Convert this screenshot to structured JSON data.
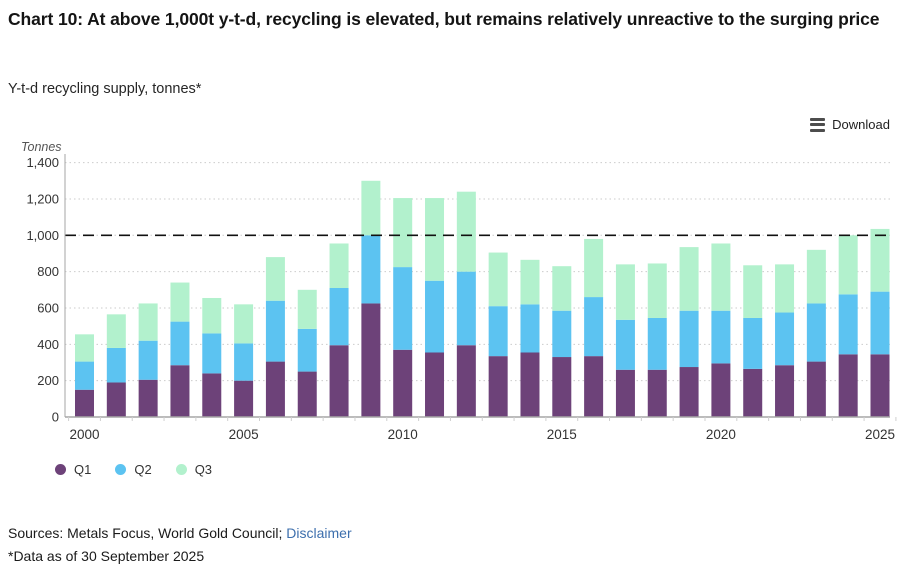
{
  "header": {
    "title": "Chart 10: At above 1,000t y-t-d, recycling is elevated, but remains relatively unreactive to the surging price",
    "subtitle": "Y-t-d recycling supply, tonnes*"
  },
  "toolbar": {
    "download_label": "Download",
    "download_icon": "hamburger-menu-icon"
  },
  "chart_data": {
    "type": "bar",
    "stacked": true,
    "title": "Y-t-d recycling supply, tonnes*",
    "axis_unit_label": "Tonnes",
    "categories": [
      2000,
      2001,
      2002,
      2003,
      2004,
      2005,
      2006,
      2007,
      2008,
      2009,
      2010,
      2011,
      2012,
      2013,
      2014,
      2015,
      2016,
      2017,
      2018,
      2019,
      2020,
      2021,
      2022,
      2023,
      2024,
      2025
    ],
    "series": [
      {
        "name": "Q1",
        "color": "#6d4279",
        "values": [
          150,
          190,
          205,
          285,
          240,
          200,
          305,
          250,
          395,
          625,
          370,
          355,
          395,
          335,
          355,
          330,
          335,
          260,
          260,
          275,
          295,
          265,
          285,
          305,
          345,
          345
        ]
      },
      {
        "name": "Q2",
        "color": "#5cc3f1",
        "values": [
          155,
          190,
          215,
          240,
          220,
          205,
          335,
          235,
          315,
          375,
          455,
          395,
          405,
          275,
          265,
          255,
          325,
          275,
          285,
          310,
          290,
          280,
          290,
          320,
          330,
          345
        ]
      },
      {
        "name": "Q3",
        "color": "#b2f1cd",
        "values": [
          150,
          185,
          205,
          215,
          195,
          215,
          240,
          215,
          245,
          300,
          380,
          455,
          440,
          295,
          245,
          245,
          320,
          305,
          300,
          350,
          370,
          290,
          265,
          295,
          325,
          345
        ]
      }
    ],
    "ylim": [
      0,
      1400
    ],
    "ytick_step": 200,
    "ytick_labels": [
      "0",
      "200",
      "400",
      "600",
      "800",
      "1,000",
      "1,200",
      "1,400"
    ],
    "xtick_labels": [
      "2000",
      "2005",
      "2010",
      "2015",
      "2020",
      "2025"
    ],
    "xtick_every": 5,
    "reference_line": {
      "value": 1000,
      "style": "dashed",
      "color": "#111111"
    },
    "grid": "dotted-horizontal",
    "grid_color": "#cbcbcb",
    "axis_color": "#a6a6a6",
    "tick_text_color": "#333333",
    "legend_position": "bottom-left"
  },
  "legend": {
    "items": [
      {
        "label": "Q1",
        "color": "#6d4279"
      },
      {
        "label": "Q2",
        "color": "#5cc3f1"
      },
      {
        "label": "Q3",
        "color": "#b2f1cd"
      }
    ]
  },
  "footer": {
    "sources_prefix": "Sources: Metals Focus, World Gold Council; ",
    "disclaimer_link": "Disclaimer",
    "data_note": "*Data as of 30 September 2025"
  }
}
